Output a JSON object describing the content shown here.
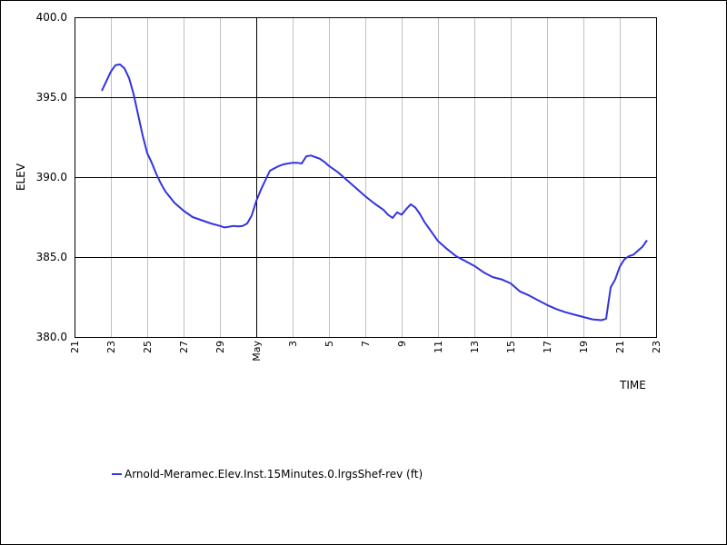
{
  "chart_data": {
    "type": "line",
    "xlabel": "TIME",
    "ylabel": "ELEV",
    "ylim": [
      380.0,
      400.0
    ],
    "y_ticks": [
      380.0,
      385.0,
      390.0,
      395.0,
      400.0
    ],
    "xlim": [
      "04-21",
      "05-23"
    ],
    "x_tick_labels": [
      {
        "date": "04-21",
        "label": "21"
      },
      {
        "date": "04-23",
        "label": "23"
      },
      {
        "date": "04-25",
        "label": "25"
      },
      {
        "date": "04-27",
        "label": "27"
      },
      {
        "date": "04-29",
        "label": "29"
      },
      {
        "date": "05-01",
        "label": "May"
      },
      {
        "date": "05-03",
        "label": "3"
      },
      {
        "date": "05-05",
        "label": "5"
      },
      {
        "date": "05-07",
        "label": "7"
      },
      {
        "date": "05-09",
        "label": "9"
      },
      {
        "date": "05-11",
        "label": "11"
      },
      {
        "date": "05-13",
        "label": "13"
      },
      {
        "date": "05-15",
        "label": "15"
      },
      {
        "date": "05-17",
        "label": "17"
      },
      {
        "date": "05-19",
        "label": "19"
      },
      {
        "date": "05-21",
        "label": "21"
      },
      {
        "date": "05-23",
        "label": "23"
      }
    ],
    "grid": true,
    "legend_position": "bottom-left",
    "series": [
      {
        "name": "Arnold-Meramec.Elev.Inst.15Minutes.0.lrgsShef-rev (ft)",
        "color": "#3333e0",
        "points": [
          [
            "04-22 12:00",
            395.4
          ],
          [
            "04-22 18:00",
            396.0
          ],
          [
            "04-23 00:00",
            396.6
          ],
          [
            "04-23 06:00",
            397.0
          ],
          [
            "04-23 12:00",
            397.05
          ],
          [
            "04-23 18:00",
            396.8
          ],
          [
            "04-24 00:00",
            396.2
          ],
          [
            "04-24 06:00",
            395.2
          ],
          [
            "04-24 12:00",
            393.9
          ],
          [
            "04-24 18:00",
            392.6
          ],
          [
            "04-25 00:00",
            391.5
          ],
          [
            "04-25 06:00",
            390.9
          ],
          [
            "04-25 12:00",
            390.2
          ],
          [
            "04-25 18:00",
            389.6
          ],
          [
            "04-26 00:00",
            389.1
          ],
          [
            "04-26 12:00",
            388.4
          ],
          [
            "04-27 00:00",
            387.9
          ],
          [
            "04-27 12:00",
            387.5
          ],
          [
            "04-28 00:00",
            387.3
          ],
          [
            "04-28 12:00",
            387.1
          ],
          [
            "04-29 00:00",
            386.95
          ],
          [
            "04-29 06:00",
            386.85
          ],
          [
            "04-29 12:00",
            386.9
          ],
          [
            "04-29 18:00",
            386.95
          ],
          [
            "04-30 00:00",
            386.92
          ],
          [
            "04-30 06:00",
            386.95
          ],
          [
            "04-30 12:00",
            387.1
          ],
          [
            "04-30 18:00",
            387.6
          ],
          [
            "05-01 00:00",
            388.5
          ],
          [
            "05-01 06:00",
            389.2
          ],
          [
            "05-01 12:00",
            389.8
          ],
          [
            "05-01 18:00",
            390.4
          ],
          [
            "05-02 00:00",
            390.55
          ],
          [
            "05-02 06:00",
            390.7
          ],
          [
            "05-02 12:00",
            390.8
          ],
          [
            "05-02 18:00",
            390.85
          ],
          [
            "05-03 00:00",
            390.9
          ],
          [
            "05-03 06:00",
            390.9
          ],
          [
            "05-03 12:00",
            390.85
          ],
          [
            "05-03 18:00",
            391.3
          ],
          [
            "05-04 00:00",
            391.35
          ],
          [
            "05-04 06:00",
            391.25
          ],
          [
            "05-04 12:00",
            391.15
          ],
          [
            "05-04 18:00",
            390.95
          ],
          [
            "05-05 00:00",
            390.7
          ],
          [
            "05-05 12:00",
            390.3
          ],
          [
            "05-06 00:00",
            389.8
          ],
          [
            "05-06 12:00",
            389.3
          ],
          [
            "05-07 00:00",
            388.8
          ],
          [
            "05-07 12:00",
            388.35
          ],
          [
            "05-08 00:00",
            387.95
          ],
          [
            "05-08 06:00",
            387.65
          ],
          [
            "05-08 12:00",
            387.45
          ],
          [
            "05-08 18:00",
            387.8
          ],
          [
            "05-09 00:00",
            387.65
          ],
          [
            "05-09 06:00",
            388.0
          ],
          [
            "05-09 12:00",
            388.3
          ],
          [
            "05-09 18:00",
            388.1
          ],
          [
            "05-10 00:00",
            387.7
          ],
          [
            "05-10 06:00",
            387.2
          ],
          [
            "05-10 12:00",
            386.8
          ],
          [
            "05-11 00:00",
            386.0
          ],
          [
            "05-11 12:00",
            385.5
          ],
          [
            "05-12 00:00",
            385.05
          ],
          [
            "05-12 12:00",
            384.75
          ],
          [
            "05-13 00:00",
            384.45
          ],
          [
            "05-13 12:00",
            384.05
          ],
          [
            "05-14 00:00",
            383.75
          ],
          [
            "05-14 12:00",
            383.6
          ],
          [
            "05-15 00:00",
            383.35
          ],
          [
            "05-15 12:00",
            382.85
          ],
          [
            "05-16 00:00",
            382.6
          ],
          [
            "05-16 12:00",
            382.3
          ],
          [
            "05-17 00:00",
            382.0
          ],
          [
            "05-17 12:00",
            381.75
          ],
          [
            "05-18 00:00",
            381.55
          ],
          [
            "05-18 12:00",
            381.4
          ],
          [
            "05-19 00:00",
            381.25
          ],
          [
            "05-19 12:00",
            381.1
          ],
          [
            "05-20 00:00",
            381.05
          ],
          [
            "05-20 06:00",
            381.15
          ],
          [
            "05-20 12:00",
            383.1
          ],
          [
            "05-20 18:00",
            383.6
          ],
          [
            "05-21 00:00",
            384.4
          ],
          [
            "05-21 06:00",
            384.85
          ],
          [
            "05-21 12:00",
            385.05
          ],
          [
            "05-21 18:00",
            385.15
          ],
          [
            "05-22 00:00",
            385.4
          ],
          [
            "05-22 06:00",
            385.65
          ],
          [
            "05-22 12:00",
            386.05
          ]
        ]
      }
    ]
  }
}
